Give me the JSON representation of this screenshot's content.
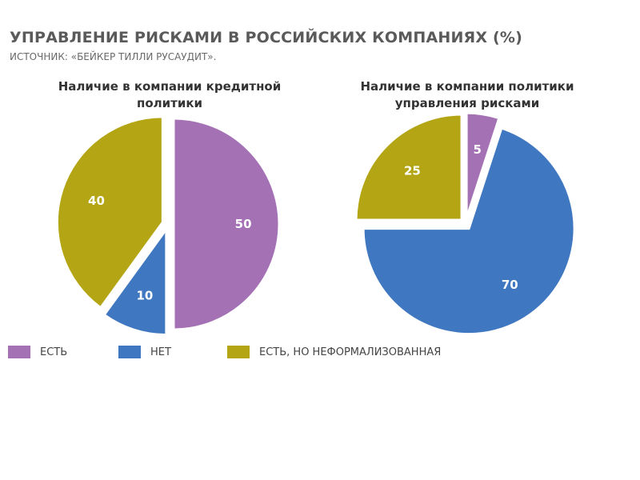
{
  "title": "УПРАВЛЕНИЕ РИСКАМИ В РОССИЙСКИХ КОМПАНИЯХ (%)",
  "source": "ИСТОЧНИК: «БЕЙКЕР ТИЛЛИ РУСАУДИТ».",
  "colors": {
    "est": "#a471b5",
    "net": "#3f78c1",
    "neformal": "#b3a514"
  },
  "legend": [
    {
      "label": "ЕСТЬ",
      "color_key": "est"
    },
    {
      "label": "НЕТ",
      "color_key": "net"
    },
    {
      "label": "ЕСТЬ, НО НЕФОРМАЛИЗОВАННАЯ",
      "color_key": "neformal"
    }
  ],
  "chart_data": [
    {
      "type": "pie",
      "title": "Наличие в компании кредитной политики",
      "categories": [
        "ЕСТЬ",
        "НЕТ",
        "ЕСТЬ, НО НЕФОРМАЛИЗОВАННАЯ"
      ],
      "values": [
        50,
        10,
        40
      ],
      "labels": [
        "50",
        "10",
        "40"
      ]
    },
    {
      "type": "pie",
      "title": "Наличие в компании политики управления рисками",
      "categories": [
        "ЕСТЬ",
        "НЕТ",
        "ЕСТЬ, НО НЕФОРМАЛИЗОВАННАЯ"
      ],
      "values": [
        5,
        70,
        25
      ],
      "labels": [
        "5",
        "70",
        "25"
      ]
    }
  ]
}
